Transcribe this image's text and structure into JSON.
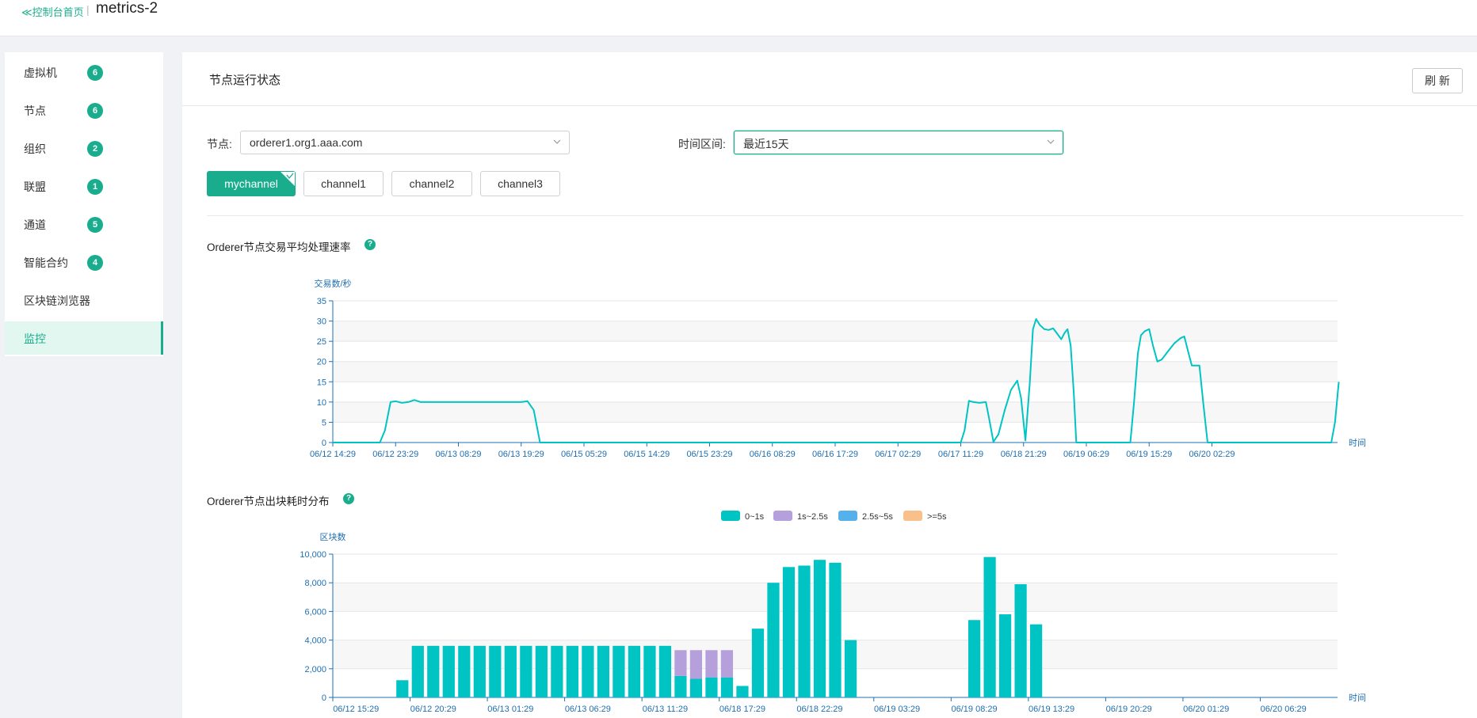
{
  "topbar": {
    "back_label": "≪控制台首页",
    "separator": "|",
    "title": "metrics-2"
  },
  "sidebar": {
    "items": [
      {
        "label": "虚拟机",
        "badge": "6"
      },
      {
        "label": "节点",
        "badge": "6"
      },
      {
        "label": "组织",
        "badge": "2"
      },
      {
        "label": "联盟",
        "badge": "1"
      },
      {
        "label": "通道",
        "badge": "5"
      },
      {
        "label": "智能合约",
        "badge": "4"
      },
      {
        "label": "区块链浏览器",
        "badge": null
      },
      {
        "label": "监控",
        "badge": null,
        "active": true
      }
    ]
  },
  "panel": {
    "title": "节点运行状态",
    "refresh_label": "刷 新",
    "node_label": "节点:",
    "node_value": "orderer1.org1.aaa.com",
    "time_label": "时间区间:",
    "time_value": "最近15天",
    "channels": [
      "mychannel",
      "channel1",
      "channel2",
      "channel3"
    ],
    "active_channel": "mychannel"
  },
  "colors": {
    "accent": "#1aad8d",
    "series_teal": "#00c4c4",
    "series_purple": "#b5a0dc",
    "series_blue": "#56b0ea",
    "series_orange": "#f9c08c",
    "axis": "#1f6fb0"
  },
  "chart_data": [
    {
      "type": "line",
      "title": "Orderer节点交易平均处理速率",
      "ylabel": "交易数/秒",
      "xlabel": "时间",
      "ylim": [
        0,
        35
      ],
      "yticks": [
        0,
        5,
        10,
        15,
        20,
        25,
        30,
        35
      ],
      "x_tick_labels": [
        "06/12 14:29",
        "06/12 23:29",
        "06/13 08:29",
        "06/13 19:29",
        "06/15 05:29",
        "06/15 14:29",
        "06/15 23:29",
        "06/16 08:29",
        "06/16 17:29",
        "06/17 02:29",
        "06/17 11:29",
        "06/18 21:29",
        "06/19 06:29",
        "06/19 15:29",
        "06/20 02:29"
      ],
      "xlim": [
        0,
        160
      ],
      "x_tick_positions": [
        0,
        10,
        20,
        30,
        40,
        50,
        60,
        70,
        80,
        90,
        100,
        110,
        120,
        130,
        140
      ],
      "series": [
        {
          "name": "交易平均处理速率",
          "points": [
            [
              0,
              0
            ],
            [
              7.5,
              0
            ],
            [
              8.3,
              3
            ],
            [
              9.2,
              10
            ],
            [
              10,
              10.2
            ],
            [
              11,
              9.8
            ],
            [
              12,
              10
            ],
            [
              13,
              10.5
            ],
            [
              14,
              10
            ],
            [
              20,
              10
            ],
            [
              30,
              10
            ],
            [
              31,
              10.2
            ],
            [
              32,
              8
            ],
            [
              33,
              0
            ],
            [
              100,
              0
            ],
            [
              100.6,
              3
            ],
            [
              101.3,
              10.3
            ],
            [
              102,
              10
            ],
            [
              103,
              9.8
            ],
            [
              104,
              10
            ],
            [
              104.5,
              6
            ],
            [
              105.2,
              0.2
            ],
            [
              106,
              2
            ],
            [
              107,
              8
            ],
            [
              108,
              13
            ],
            [
              109,
              15.3
            ],
            [
              109.6,
              11
            ],
            [
              110.3,
              0.5
            ],
            [
              111,
              15
            ],
            [
              111.5,
              28
            ],
            [
              112,
              30.5
            ],
            [
              112.6,
              29
            ],
            [
              113.3,
              28
            ],
            [
              114,
              27.8
            ],
            [
              114.7,
              28.2
            ],
            [
              115.3,
              27
            ],
            [
              116,
              25.5
            ],
            [
              116.5,
              27
            ],
            [
              117,
              28
            ],
            [
              117.5,
              24
            ],
            [
              118,
              12
            ],
            [
              118.4,
              0
            ],
            [
              127,
              0
            ],
            [
              127.6,
              10
            ],
            [
              128.2,
              22
            ],
            [
              128.7,
              26.5
            ],
            [
              129.3,
              27.5
            ],
            [
              130,
              28
            ],
            [
              130.6,
              24
            ],
            [
              131.3,
              20
            ],
            [
              132,
              20.5
            ],
            [
              133,
              22.5
            ],
            [
              134,
              24.5
            ],
            [
              135,
              25.8
            ],
            [
              135.6,
              26.2
            ],
            [
              136.2,
              22.5
            ],
            [
              136.8,
              19
            ],
            [
              137.5,
              19
            ],
            [
              138,
              19
            ],
            [
              138.6,
              10
            ],
            [
              139.3,
              0
            ],
            [
              159,
              0
            ],
            [
              159.6,
              5
            ],
            [
              160.2,
              15
            ]
          ]
        }
      ]
    },
    {
      "type": "bar",
      "stacked": true,
      "title": "Orderer节点出块耗时分布",
      "ylabel": "区块数",
      "xlabel": "时间",
      "ylim": [
        0,
        10000
      ],
      "yticks": [
        0,
        2000,
        4000,
        6000,
        8000,
        10000
      ],
      "ytick_labels": [
        "0",
        "2,000",
        "4,000",
        "6,000",
        "8,000",
        "10,000"
      ],
      "x_tick_labels": [
        "06/12 15:29",
        "06/12 20:29",
        "06/13 01:29",
        "06/13 06:29",
        "06/13 11:29",
        "06/18 17:29",
        "06/18 22:29",
        "06/19 03:29",
        "06/19 08:29",
        "06/19 13:29",
        "06/19 20:29",
        "06/20 01:29",
        "06/20 06:29"
      ],
      "legend": [
        "0~1s",
        "1s~2.5s",
        "2.5s~5s",
        ">=5s"
      ],
      "series": [
        {
          "name": "0~1s",
          "values": [
            0,
            0,
            0,
            0,
            1200,
            3600,
            3600,
            3600,
            3600,
            3600,
            3600,
            3600,
            3600,
            3600,
            3600,
            3600,
            3600,
            3600,
            3600,
            3600,
            3600,
            3600,
            1500,
            1300,
            1400,
            1400,
            800,
            4800,
            8000,
            9100,
            9200,
            9600,
            9400,
            4000,
            0,
            0,
            0,
            0,
            0,
            0,
            0,
            5400,
            9800,
            5800,
            7900,
            5100,
            0,
            0,
            0,
            0,
            0,
            0,
            0,
            0,
            0,
            0,
            0,
            0,
            0,
            0,
            0,
            0,
            0,
            0,
            0
          ]
        },
        {
          "name": "1s~2.5s",
          "values": [
            0,
            0,
            0,
            0,
            0,
            0,
            0,
            0,
            0,
            0,
            0,
            0,
            0,
            0,
            0,
            0,
            0,
            0,
            0,
            0,
            0,
            0,
            1800,
            2000,
            1900,
            1900,
            0,
            0,
            0,
            0,
            0,
            0,
            0,
            0,
            0,
            0,
            0,
            0,
            0,
            0,
            0,
            0,
            0,
            0,
            0,
            0,
            0,
            0,
            0,
            0,
            0,
            0,
            0,
            0,
            0,
            0,
            0,
            0,
            0,
            0,
            0,
            0,
            0,
            0,
            0
          ]
        },
        {
          "name": "2.5s~5s",
          "values": [
            0,
            0,
            0,
            0,
            0,
            0,
            0,
            0,
            0,
            0,
            0,
            0,
            0,
            0,
            0,
            0,
            0,
            0,
            0,
            0,
            0,
            0,
            0,
            0,
            0,
            0,
            0,
            0,
            0,
            0,
            0,
            0,
            0,
            0,
            0,
            0,
            0,
            0,
            0,
            0,
            0,
            0,
            0,
            0,
            0,
            0,
            0,
            0,
            0,
            0,
            0,
            0,
            0,
            0,
            0,
            0,
            0,
            0,
            0,
            0,
            0,
            0,
            0,
            0,
            0
          ]
        },
        {
          "name": ">=5s",
          "values": [
            0,
            0,
            0,
            0,
            0,
            0,
            0,
            0,
            0,
            0,
            0,
            0,
            0,
            0,
            0,
            0,
            0,
            0,
            0,
            0,
            0,
            0,
            0,
            0,
            0,
            0,
            0,
            0,
            0,
            0,
            0,
            0,
            0,
            0,
            0,
            0,
            0,
            0,
            0,
            0,
            0,
            0,
            0,
            0,
            0,
            0,
            0,
            0,
            0,
            0,
            0,
            0,
            0,
            0,
            0,
            0,
            0,
            0,
            0,
            0,
            0,
            0,
            0,
            0,
            0
          ]
        }
      ]
    }
  ]
}
